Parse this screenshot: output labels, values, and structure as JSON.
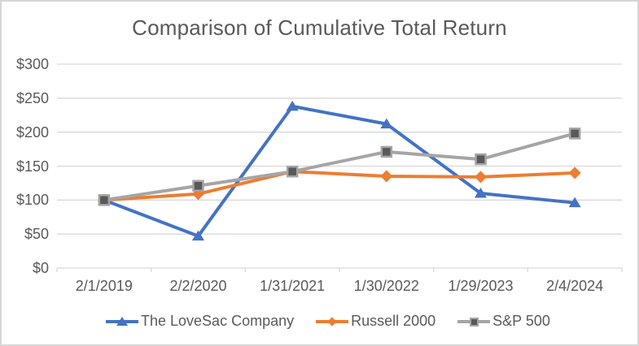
{
  "chart_data": {
    "type": "line",
    "title": "Comparison of Cumulative Total Return",
    "categories": [
      "2/1/2019",
      "2/2/2020",
      "1/31/2021",
      "1/30/2022",
      "1/29/2023",
      "2/4/2024"
    ],
    "series": [
      {
        "name": "The LoveSac Company",
        "color": "#4472C4",
        "marker": "triangle",
        "values": [
          100,
          47,
          238,
          212,
          110,
          96
        ]
      },
      {
        "name": "Russell 2000",
        "color": "#ED7D31",
        "marker": "diamond",
        "values": [
          100,
          109,
          142,
          135,
          134,
          140
        ]
      },
      {
        "name": "S&P 500",
        "color": "#A5A5A5",
        "marker": "square",
        "marker_fill": "#595959",
        "marker_stroke": "#A5A5A5",
        "values": [
          100,
          121,
          142,
          171,
          160,
          198
        ]
      }
    ],
    "y_axis": {
      "min": 0,
      "max": 300,
      "step": 50,
      "tick_labels": [
        "$0",
        "$50",
        "$100",
        "$150",
        "$200",
        "$250",
        "$300"
      ]
    },
    "x_axis": {
      "tick_labels": [
        "2/1/2019",
        "2/2/2020",
        "1/31/2021",
        "1/30/2022",
        "1/29/2023",
        "2/4/2024"
      ]
    },
    "grid": true,
    "legend_position": "bottom",
    "ylim": [
      0,
      300
    ],
    "colors": {
      "text": "#595959",
      "gridline": "#D9D9D9",
      "background": "#FFFFFF",
      "frame_border": "#D6D6D6"
    }
  }
}
